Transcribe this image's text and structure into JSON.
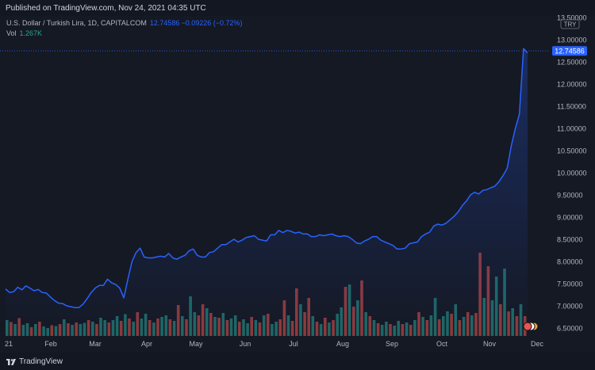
{
  "header": {
    "published": "Published on TradingView.com, Nov 24, 2021 04:35 UTC"
  },
  "legend": {
    "symbol": "U.S. Dollar / Turkish Lira, 1D, CAPITALCOM",
    "price": "12.74586",
    "change": "−0.09226 (−0.72%)",
    "vol_label": "Vol",
    "vol_value": "1.267K"
  },
  "footer": {
    "brand": "TradingView"
  },
  "colors": {
    "line": "#2962ff",
    "vol_up": "#26a69a",
    "vol_down": "#ef5350",
    "background": "#131722"
  },
  "chart_data": {
    "type": "area",
    "currency_badge": "TRY",
    "last_price_label": "12.74586",
    "ylim": [
      6.5,
      13.5
    ],
    "y_ticks": [
      "13.50000",
      "13.00000",
      "12.50000",
      "12.00000",
      "11.50000",
      "11.00000",
      "10.50000",
      "10.00000",
      "9.50000",
      "9.00000",
      "8.50000",
      "8.00000",
      "7.50000",
      "7.00000",
      "6.50000"
    ],
    "x_ticks": [
      "21",
      "Feb",
      "Mar",
      "Apr",
      "May",
      "Jun",
      "Jul",
      "Aug",
      "Sep",
      "Oct",
      "Nov",
      "Dec"
    ],
    "series": [
      {
        "values": [
          7.38,
          7.3,
          7.32,
          7.42,
          7.36,
          7.45,
          7.4,
          7.34,
          7.37,
          7.3,
          7.29,
          7.2,
          7.12,
          7.06,
          7.05,
          7.0,
          6.98,
          6.96,
          6.96,
          7.04,
          7.16,
          7.3,
          7.4,
          7.46,
          7.46,
          7.6,
          7.52,
          7.48,
          7.4,
          7.18,
          7.6,
          8.0,
          8.2,
          8.3,
          8.1,
          8.08,
          8.08,
          8.1,
          8.12,
          8.1,
          8.18,
          8.08,
          8.05,
          8.1,
          8.14,
          8.24,
          8.28,
          8.14,
          8.1,
          8.1,
          8.2,
          8.22,
          8.3,
          8.38,
          8.38,
          8.44,
          8.5,
          8.44,
          8.48,
          8.54,
          8.56,
          8.58,
          8.5,
          8.48,
          8.46,
          8.6,
          8.6,
          8.7,
          8.65,
          8.7,
          8.68,
          8.64,
          8.66,
          8.62,
          8.62,
          8.56,
          8.56,
          8.6,
          8.58,
          8.6,
          8.62,
          8.58,
          8.56,
          8.58,
          8.56,
          8.5,
          8.42,
          8.4,
          8.46,
          8.5,
          8.56,
          8.56,
          8.48,
          8.44,
          8.4,
          8.36,
          8.28,
          8.28,
          8.3,
          8.4,
          8.42,
          8.44,
          8.56,
          8.62,
          8.66,
          8.8,
          8.84,
          8.82,
          8.86,
          8.94,
          9.02,
          9.12,
          9.26,
          9.36,
          9.5,
          9.56,
          9.52,
          9.6,
          9.62,
          9.66,
          9.7,
          9.8,
          9.94,
          10.1,
          10.6,
          11.0,
          11.32,
          12.8,
          12.7
        ]
      }
    ],
    "volume": [
      {
        "v": 0.4,
        "up": true
      },
      {
        "v": 0.35,
        "up": false
      },
      {
        "v": 0.3,
        "up": true
      },
      {
        "v": 0.45,
        "up": false
      },
      {
        "v": 0.28,
        "up": true
      },
      {
        "v": 0.32,
        "up": true
      },
      {
        "v": 0.22,
        "up": false
      },
      {
        "v": 0.3,
        "up": true
      },
      {
        "v": 0.36,
        "up": false
      },
      {
        "v": 0.24,
        "up": true
      },
      {
        "v": 0.2,
        "up": true
      },
      {
        "v": 0.27,
        "up": false
      },
      {
        "v": 0.25,
        "up": true
      },
      {
        "v": 0.3,
        "up": false
      },
      {
        "v": 0.42,
        "up": true
      },
      {
        "v": 0.32,
        "up": false
      },
      {
        "v": 0.28,
        "up": true
      },
      {
        "v": 0.34,
        "up": false
      },
      {
        "v": 0.3,
        "up": true
      },
      {
        "v": 0.33,
        "up": true
      },
      {
        "v": 0.4,
        "up": false
      },
      {
        "v": 0.36,
        "up": true
      },
      {
        "v": 0.3,
        "up": false
      },
      {
        "v": 0.46,
        "up": true
      },
      {
        "v": 0.4,
        "up": true
      },
      {
        "v": 0.34,
        "up": false
      },
      {
        "v": 0.4,
        "up": true
      },
      {
        "v": 0.5,
        "up": true
      },
      {
        "v": 0.38,
        "up": false
      },
      {
        "v": 0.55,
        "up": true
      },
      {
        "v": 0.44,
        "up": false
      },
      {
        "v": 0.36,
        "up": true
      },
      {
        "v": 0.6,
        "up": false
      },
      {
        "v": 0.44,
        "up": true
      },
      {
        "v": 0.56,
        "up": true
      },
      {
        "v": 0.4,
        "up": false
      },
      {
        "v": 0.34,
        "up": true
      },
      {
        "v": 0.44,
        "up": false
      },
      {
        "v": 0.48,
        "up": true
      },
      {
        "v": 0.52,
        "up": true
      },
      {
        "v": 0.42,
        "up": false
      },
      {
        "v": 0.38,
        "up": true
      },
      {
        "v": 0.78,
        "up": false
      },
      {
        "v": 0.5,
        "up": true
      },
      {
        "v": 0.42,
        "up": false
      },
      {
        "v": 1.0,
        "up": true
      },
      {
        "v": 0.6,
        "up": true
      },
      {
        "v": 0.52,
        "up": false
      },
      {
        "v": 0.8,
        "up": false
      },
      {
        "v": 0.7,
        "up": true
      },
      {
        "v": 0.58,
        "up": false
      },
      {
        "v": 0.48,
        "up": true
      },
      {
        "v": 0.46,
        "up": false
      },
      {
        "v": 0.58,
        "up": true
      },
      {
        "v": 0.4,
        "up": false
      },
      {
        "v": 0.44,
        "up": true
      },
      {
        "v": 0.52,
        "up": true
      },
      {
        "v": 0.36,
        "up": false
      },
      {
        "v": 0.42,
        "up": true
      },
      {
        "v": 0.32,
        "up": true
      },
      {
        "v": 0.48,
        "up": false
      },
      {
        "v": 0.4,
        "up": true
      },
      {
        "v": 0.34,
        "up": false
      },
      {
        "v": 0.52,
        "up": true
      },
      {
        "v": 0.56,
        "up": false
      },
      {
        "v": 0.3,
        "up": true
      },
      {
        "v": 0.36,
        "up": true
      },
      {
        "v": 0.42,
        "up": false
      },
      {
        "v": 0.9,
        "up": false
      },
      {
        "v": 0.52,
        "up": true
      },
      {
        "v": 0.38,
        "up": false
      },
      {
        "v": 1.2,
        "up": false
      },
      {
        "v": 0.8,
        "up": true
      },
      {
        "v": 0.6,
        "up": false
      },
      {
        "v": 0.96,
        "up": false
      },
      {
        "v": 0.5,
        "up": true
      },
      {
        "v": 0.36,
        "up": false
      },
      {
        "v": 0.3,
        "up": true
      },
      {
        "v": 0.46,
        "up": false
      },
      {
        "v": 0.34,
        "up": true
      },
      {
        "v": 0.4,
        "up": false
      },
      {
        "v": 0.56,
        "up": true
      },
      {
        "v": 0.72,
        "up": true
      },
      {
        "v": 1.24,
        "up": false
      },
      {
        "v": 1.3,
        "up": true
      },
      {
        "v": 0.74,
        "up": false
      },
      {
        "v": 0.9,
        "up": true
      },
      {
        "v": 1.4,
        "up": false
      },
      {
        "v": 0.6,
        "up": true
      },
      {
        "v": 0.5,
        "up": false
      },
      {
        "v": 0.4,
        "up": true
      },
      {
        "v": 0.32,
        "up": false
      },
      {
        "v": 0.28,
        "up": true
      },
      {
        "v": 0.36,
        "up": true
      },
      {
        "v": 0.3,
        "up": false
      },
      {
        "v": 0.26,
        "up": true
      },
      {
        "v": 0.38,
        "up": true
      },
      {
        "v": 0.3,
        "up": false
      },
      {
        "v": 0.34,
        "up": true
      },
      {
        "v": 0.28,
        "up": false
      },
      {
        "v": 0.4,
        "up": true
      },
      {
        "v": 0.6,
        "up": false
      },
      {
        "v": 0.48,
        "up": true
      },
      {
        "v": 0.4,
        "up": false
      },
      {
        "v": 0.52,
        "up": true
      },
      {
        "v": 0.96,
        "up": true
      },
      {
        "v": 0.42,
        "up": false
      },
      {
        "v": 0.5,
        "up": true
      },
      {
        "v": 0.62,
        "up": true
      },
      {
        "v": 0.56,
        "up": false
      },
      {
        "v": 0.8,
        "up": true
      },
      {
        "v": 0.4,
        "up": false
      },
      {
        "v": 0.48,
        "up": true
      },
      {
        "v": 0.6,
        "up": false
      },
      {
        "v": 0.52,
        "up": true
      },
      {
        "v": 0.58,
        "up": false
      },
      {
        "v": 2.1,
        "up": false
      },
      {
        "v": 0.96,
        "up": true
      },
      {
        "v": 1.76,
        "up": false
      },
      {
        "v": 0.9,
        "up": true
      },
      {
        "v": 1.5,
        "up": true
      },
      {
        "v": 0.8,
        "up": false
      },
      {
        "v": 1.7,
        "up": true
      },
      {
        "v": 0.62,
        "up": false
      },
      {
        "v": 0.7,
        "up": true
      },
      {
        "v": 0.5,
        "up": false
      },
      {
        "v": 0.8,
        "up": true
      },
      {
        "v": 0.5,
        "up": false
      }
    ]
  }
}
